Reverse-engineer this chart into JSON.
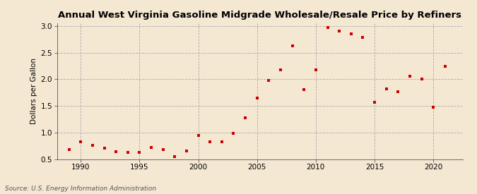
{
  "title": "Annual West Virginia Gasoline Midgrade Wholesale/Resale Price by Refiners",
  "ylabel": "Dollars per Gallon",
  "source": "Source: U.S. Energy Information Administration",
  "background_color": "#f5e8d2",
  "marker_color": "#cc0000",
  "xlim": [
    1988.0,
    2022.5
  ],
  "ylim": [
    0.5,
    3.05
  ],
  "yticks": [
    0.5,
    1.0,
    1.5,
    2.0,
    2.5,
    3.0
  ],
  "xticks": [
    1990,
    1995,
    2000,
    2005,
    2010,
    2015,
    2020
  ],
  "years": [
    1989,
    1990,
    1991,
    1992,
    1993,
    1994,
    1995,
    1996,
    1997,
    1998,
    1999,
    2000,
    2001,
    2002,
    2003,
    2004,
    2005,
    2006,
    2007,
    2008,
    2009,
    2010,
    2011,
    2012,
    2013,
    2014,
    2015,
    2016,
    2017,
    2018,
    2019,
    2020,
    2021
  ],
  "values": [
    0.68,
    0.82,
    0.76,
    0.7,
    0.64,
    0.62,
    0.62,
    0.72,
    0.68,
    0.55,
    0.65,
    0.95,
    0.83,
    0.83,
    0.99,
    1.28,
    1.65,
    1.98,
    2.18,
    2.63,
    1.81,
    2.17,
    2.97,
    2.9,
    2.85,
    2.78,
    1.57,
    1.82,
    1.76,
    2.06,
    2.0,
    1.48,
    2.24
  ]
}
